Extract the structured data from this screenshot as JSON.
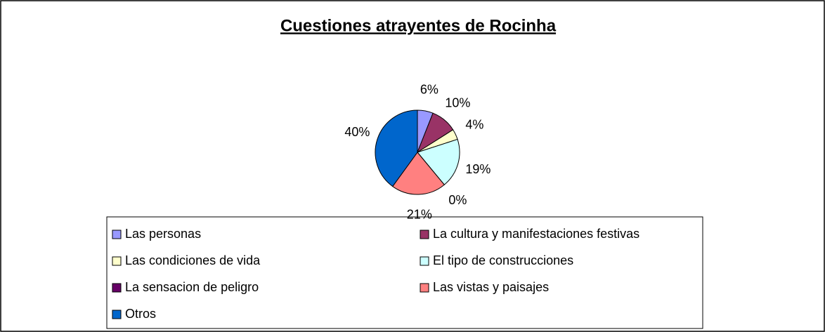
{
  "chart_data": {
    "type": "pie",
    "title": "Cuestiones atrayentes de Rocinha",
    "categories": [
      "Las personas",
      "La cultura y manifestaciones festivas",
      "Las condiciones de vida",
      "El tipo de construcciones",
      "La sensacion de peligro",
      "Las vistas y paisajes",
      "Otros"
    ],
    "values": [
      6,
      10,
      4,
      19,
      0,
      21,
      40
    ],
    "value_labels": [
      "6%",
      "10%",
      "4%",
      "19%",
      "0%",
      "21%",
      "40%"
    ],
    "colors": [
      "#9999ff",
      "#993366",
      "#ffffcc",
      "#ccffff",
      "#660066",
      "#ff8080",
      "#0066cc"
    ],
    "legend": "bottom"
  }
}
